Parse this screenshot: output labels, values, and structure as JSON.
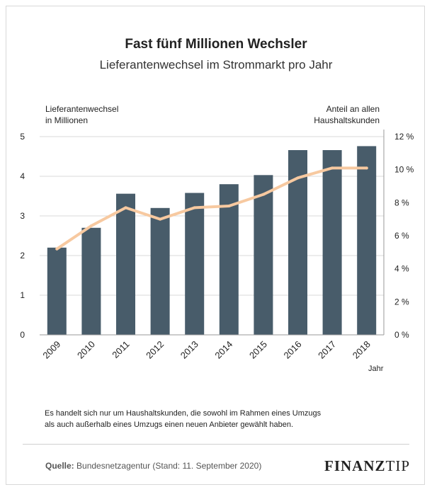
{
  "title": "Fast fünf Millionen Wechsler",
  "subtitle": "Lieferantenwechsel im Strommarkt pro Jahr",
  "left_axis_title": [
    "Lieferantenwechsel",
    "in Millionen"
  ],
  "right_axis_title": [
    "Anteil an allen",
    "Haushaltskunden"
  ],
  "note": [
    "Es handelt sich nur um Haushaltskunden, die sowohl im Rahmen eines Umzugs",
    "als auch außerhalb eines Umzugs einen neuen Anbieter gewählt haben."
  ],
  "source_label": "Quelle:",
  "source_text": " Bundesnetzagentur (Stand: 11. September 2020)",
  "logo": {
    "part1": "FINANZ",
    "part2": "TIP"
  },
  "colors": {
    "bar": "#485c6a",
    "line": "#f7c9a0",
    "grid": "#d9d9d9",
    "axis": "#999999"
  },
  "chart_data": {
    "type": "bar",
    "categories": [
      "2009",
      "2010",
      "2011",
      "2012",
      "2013",
      "2014",
      "2015",
      "2016",
      "2017",
      "2018"
    ],
    "xlabel": "Jahr",
    "ylim": [
      0,
      5
    ],
    "y_ticks": [
      "0",
      "1",
      "2",
      "3",
      "4",
      "5"
    ],
    "y2lim": [
      0,
      12
    ],
    "y2_ticks": [
      "0 %",
      "2 %",
      "4 %",
      "6 %",
      "8 %",
      "10 %",
      "12 %"
    ],
    "grid": true,
    "series": [
      {
        "kind": "bar",
        "axis": "left",
        "values": [
          2.2,
          2.7,
          3.56,
          3.2,
          3.58,
          3.8,
          4.03,
          4.66,
          4.66,
          4.76
        ]
      },
      {
        "kind": "line",
        "axis": "right",
        "values": [
          5.2,
          6.6,
          7.7,
          7.0,
          7.7,
          7.8,
          8.5,
          9.5,
          10.1,
          10.1
        ]
      }
    ]
  }
}
